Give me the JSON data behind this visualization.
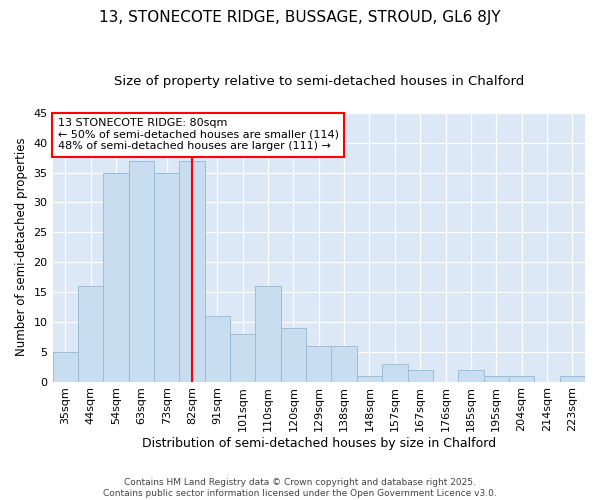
{
  "title1": "13, STONECOTE RIDGE, BUSSAGE, STROUD, GL6 8JY",
  "title2": "Size of property relative to semi-detached houses in Chalford",
  "xlabel": "Distribution of semi-detached houses by size in Chalford",
  "ylabel": "Number of semi-detached properties",
  "categories": [
    "35sqm",
    "44sqm",
    "54sqm",
    "63sqm",
    "73sqm",
    "82sqm",
    "91sqm",
    "101sqm",
    "110sqm",
    "120sqm",
    "129sqm",
    "138sqm",
    "148sqm",
    "157sqm",
    "167sqm",
    "176sqm",
    "185sqm",
    "195sqm",
    "204sqm",
    "214sqm",
    "223sqm"
  ],
  "values": [
    5,
    16,
    35,
    37,
    35,
    37,
    11,
    8,
    16,
    9,
    6,
    6,
    1,
    3,
    2,
    0,
    2,
    1,
    1,
    0,
    1
  ],
  "bar_color": "#c9ddf0",
  "bar_edge_color": "#9bbdd8",
  "vline_index": 5,
  "vline_color": "red",
  "annotation_text": "13 STONECOTE RIDGE: 80sqm\n← 50% of semi-detached houses are smaller (114)\n48% of semi-detached houses are larger (111) →",
  "annotation_box_color": "white",
  "annotation_box_edgecolor": "red",
  "ylim": [
    0,
    45
  ],
  "yticks": [
    0,
    5,
    10,
    15,
    20,
    25,
    30,
    35,
    40,
    45
  ],
  "background_color": "#dce8f5",
  "grid_color": "white",
  "footer_text": "Contains HM Land Registry data © Crown copyright and database right 2025.\nContains public sector information licensed under the Open Government Licence v3.0.",
  "title1_fontsize": 11,
  "title2_fontsize": 9.5,
  "xlabel_fontsize": 9,
  "ylabel_fontsize": 8.5,
  "tick_fontsize": 8,
  "annotation_fontsize": 8,
  "footer_fontsize": 6.5
}
